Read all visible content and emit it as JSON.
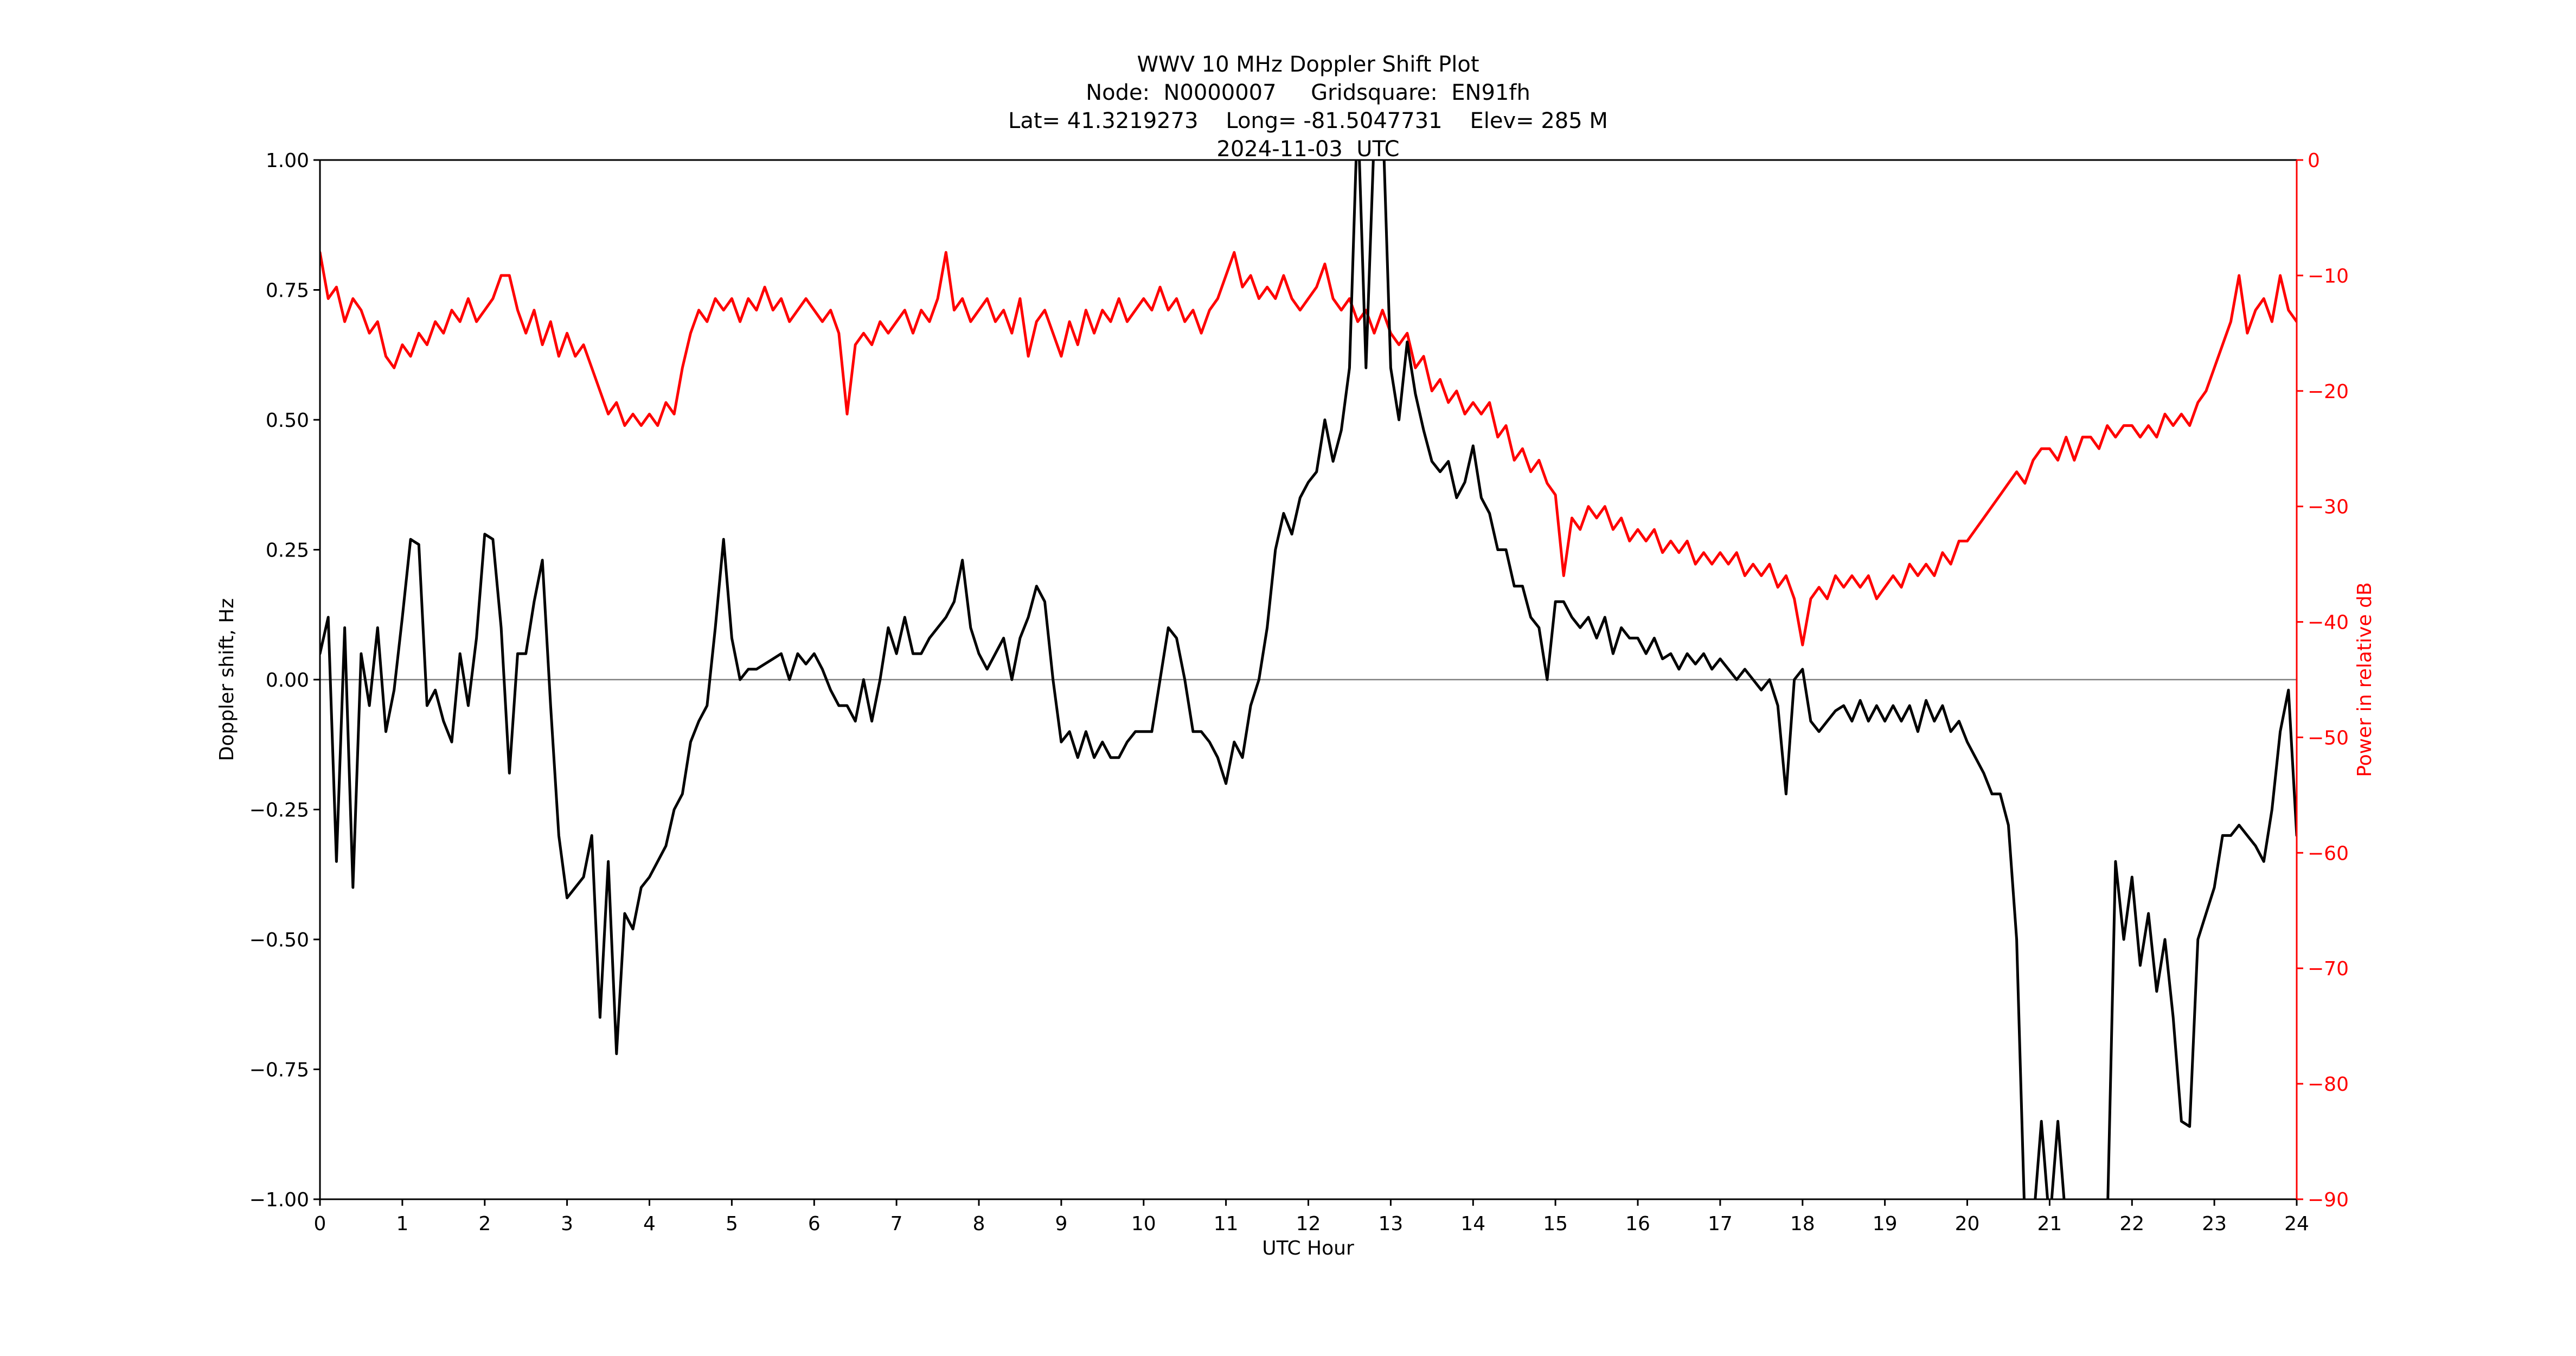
{
  "figure": {
    "title_line1": "WWV 10 MHz Doppler Shift Plot",
    "title_line2": "Node:  N0000007     Gridsquare:  EN91fh",
    "title_line3": "Lat= 41.3219273    Long= -81.5047731    Elev= 285 M",
    "title_line4": "2024-11-03  UTC",
    "background_color": "#ffffff"
  },
  "axes": {
    "x": {
      "label": "UTC Hour",
      "min": 0,
      "max": 24,
      "ticks": [
        0,
        1,
        2,
        3,
        4,
        5,
        6,
        7,
        8,
        9,
        10,
        11,
        12,
        13,
        14,
        15,
        16,
        17,
        18,
        19,
        20,
        21,
        22,
        23,
        24
      ],
      "tick_labels": [
        "0",
        "1",
        "2",
        "3",
        "4",
        "5",
        "6",
        "7",
        "8",
        "9",
        "10",
        "11",
        "12",
        "13",
        "14",
        "15",
        "16",
        "17",
        "18",
        "19",
        "20",
        "21",
        "22",
        "23",
        "24"
      ],
      "color": "#000000"
    },
    "y_left": {
      "label": "Doppler shift, Hz",
      "min": -1.0,
      "max": 1.0,
      "ticks": [
        1.0,
        0.75,
        0.5,
        0.25,
        0.0,
        -0.25,
        -0.5,
        -0.75,
        -1.0
      ],
      "tick_labels": [
        "1.00",
        "0.75",
        "0.50",
        "0.25",
        "0.00",
        "−0.25",
        "−0.50",
        "−0.75",
        "−1.00"
      ],
      "color": "#000000"
    },
    "y_right": {
      "label": "Power in relative dB",
      "min": -90,
      "max": 0,
      "ticks": [
        0,
        -10,
        -20,
        -30,
        -40,
        -50,
        -60,
        -70,
        -80,
        -90
      ],
      "tick_labels": [
        "0",
        "−10",
        "−20",
        "−30",
        "−40",
        "−50",
        "−60",
        "−70",
        "−80",
        "−90"
      ],
      "color": "#ff0000"
    },
    "zero_line": {
      "value": 0.0,
      "color": "#808080"
    }
  },
  "chart_data": {
    "type": "line",
    "title": "WWV 10 MHz Doppler Shift Plot",
    "subtitle": "Node:  N0000007     Gridsquare:  EN91fh  |  Lat= 41.3219273  Long= -81.5047731  Elev= 285 M  |  2024-11-03 UTC",
    "xlabel": "UTC Hour",
    "ylabel_left": "Doppler shift, Hz",
    "ylabel_right": "Power in relative dB",
    "xlim": [
      0,
      24
    ],
    "ylim_left": [
      -1.0,
      1.0
    ],
    "ylim_right": [
      -90,
      0
    ],
    "grid": false,
    "legend": "none",
    "x_start": 0,
    "x_step": 0.1,
    "series": [
      {
        "name": "Doppler shift, Hz",
        "axis": "left",
        "color": "#000000",
        "values": [
          0.05,
          0.12,
          -0.35,
          0.1,
          -0.4,
          0.05,
          -0.05,
          0.1,
          -0.1,
          -0.02,
          0.12,
          0.27,
          0.26,
          -0.05,
          -0.02,
          -0.08,
          -0.12,
          0.05,
          -0.05,
          0.08,
          0.28,
          0.27,
          0.1,
          -0.18,
          0.05,
          0.05,
          0.15,
          0.23,
          -0.05,
          -0.3,
          -0.42,
          -0.4,
          -0.38,
          -0.3,
          -0.65,
          -0.35,
          -0.72,
          -0.45,
          -0.48,
          -0.4,
          -0.38,
          -0.35,
          -0.32,
          -0.25,
          -0.22,
          -0.12,
          -0.08,
          -0.05,
          0.1,
          0.27,
          0.08,
          0.0,
          0.02,
          0.02,
          0.03,
          0.04,
          0.05,
          0.0,
          0.05,
          0.03,
          0.05,
          0.02,
          -0.02,
          -0.05,
          -0.05,
          -0.08,
          0.0,
          -0.08,
          0.0,
          0.1,
          0.05,
          0.12,
          0.05,
          0.05,
          0.08,
          0.1,
          0.12,
          0.15,
          0.23,
          0.1,
          0.05,
          0.02,
          0.05,
          0.08,
          0.0,
          0.08,
          0.12,
          0.18,
          0.15,
          0.0,
          -0.12,
          -0.1,
          -0.15,
          -0.1,
          -0.15,
          -0.12,
          -0.15,
          -0.15,
          -0.12,
          -0.1,
          -0.1,
          -0.1,
          0.0,
          0.1,
          0.08,
          0.0,
          -0.1,
          -0.1,
          -0.12,
          -0.15,
          -0.2,
          -0.12,
          -0.15,
          -0.05,
          0.0,
          0.1,
          0.25,
          0.32,
          0.28,
          0.35,
          0.38,
          0.4,
          0.5,
          0.42,
          0.48,
          0.6,
          1.1,
          0.6,
          1.05,
          1.1,
          0.6,
          0.5,
          0.65,
          0.55,
          0.48,
          0.42,
          0.4,
          0.42,
          0.35,
          0.38,
          0.45,
          0.35,
          0.32,
          0.25,
          0.25,
          0.18,
          0.18,
          0.12,
          0.1,
          0.0,
          0.15,
          0.15,
          0.12,
          0.1,
          0.12,
          0.08,
          0.12,
          0.05,
          0.1,
          0.08,
          0.08,
          0.05,
          0.08,
          0.04,
          0.05,
          0.02,
          0.05,
          0.03,
          0.05,
          0.02,
          0.04,
          0.02,
          0.0,
          0.02,
          0.0,
          -0.02,
          0.0,
          -0.05,
          -0.22,
          0.0,
          0.02,
          -0.08,
          -0.1,
          -0.08,
          -0.06,
          -0.05,
          -0.08,
          -0.04,
          -0.08,
          -0.05,
          -0.08,
          -0.05,
          -0.08,
          -0.05,
          -0.1,
          -0.04,
          -0.08,
          -0.05,
          -0.1,
          -0.08,
          -0.12,
          -0.15,
          -0.18,
          -0.22,
          -0.22,
          -0.28,
          -0.5,
          -1.05,
          -1.05,
          -0.85,
          -1.05,
          -0.85,
          -1.05,
          -1.05,
          -1.05,
          -1.05,
          -1.05,
          -1.05,
          -0.35,
          -0.5,
          -0.38,
          -0.55,
          -0.45,
          -0.6,
          -0.5,
          -0.65,
          -0.85,
          -0.86,
          -0.5,
          -0.45,
          -0.4,
          -0.3,
          -0.3,
          -0.28,
          -0.3,
          -0.32,
          -0.35,
          -0.25,
          -0.1,
          -0.02,
          -0.3
        ]
      },
      {
        "name": "Power in relative dB",
        "axis": "right",
        "color": "#ff0000",
        "values": [
          -8,
          -12,
          -11,
          -14,
          -12,
          -13,
          -15,
          -14,
          -17,
          -18,
          -16,
          -17,
          -15,
          -16,
          -14,
          -15,
          -13,
          -14,
          -12,
          -14,
          -13,
          -12,
          -10,
          -10,
          -13,
          -15,
          -13,
          -16,
          -14,
          -17,
          -15,
          -17,
          -16,
          -18,
          -20,
          -22,
          -21,
          -23,
          -22,
          -23,
          -22,
          -23,
          -21,
          -22,
          -18,
          -15,
          -13,
          -14,
          -12,
          -13,
          -12,
          -14,
          -12,
          -13,
          -11,
          -13,
          -12,
          -14,
          -13,
          -12,
          -13,
          -14,
          -13,
          -15,
          -22,
          -16,
          -15,
          -16,
          -14,
          -15,
          -14,
          -13,
          -15,
          -13,
          -14,
          -12,
          -8,
          -13,
          -12,
          -14,
          -13,
          -12,
          -14,
          -13,
          -15,
          -12,
          -17,
          -14,
          -13,
          -15,
          -17,
          -14,
          -16,
          -13,
          -15,
          -13,
          -14,
          -12,
          -14,
          -13,
          -12,
          -13,
          -11,
          -13,
          -12,
          -14,
          -13,
          -15,
          -13,
          -12,
          -10,
          -8,
          -11,
          -10,
          -12,
          -11,
          -12,
          -10,
          -12,
          -13,
          -12,
          -11,
          -9,
          -12,
          -13,
          -12,
          -14,
          -13,
          -15,
          -13,
          -15,
          -16,
          -15,
          -18,
          -17,
          -20,
          -19,
          -21,
          -20,
          -22,
          -21,
          -22,
          -21,
          -24,
          -23,
          -26,
          -25,
          -27,
          -26,
          -28,
          -29,
          -36,
          -31,
          -32,
          -30,
          -31,
          -30,
          -32,
          -31,
          -33,
          -32,
          -33,
          -32,
          -34,
          -33,
          -34,
          -33,
          -35,
          -34,
          -35,
          -34,
          -35,
          -34,
          -36,
          -35,
          -36,
          -35,
          -37,
          -36,
          -38,
          -42,
          -38,
          -37,
          -38,
          -36,
          -37,
          -36,
          -37,
          -36,
          -38,
          -37,
          -36,
          -37,
          -35,
          -36,
          -35,
          -36,
          -34,
          -35,
          -33,
          -33,
          -32,
          -31,
          -30,
          -29,
          -28,
          -27,
          -28,
          -26,
          -25,
          -25,
          -26,
          -24,
          -26,
          -24,
          -24,
          -25,
          -23,
          -24,
          -23,
          -23,
          -24,
          -23,
          -24,
          -22,
          -23,
          -22,
          -23,
          -21,
          -20,
          -18,
          -16,
          -14,
          -10,
          -15,
          -13,
          -12,
          -14,
          -10,
          -13,
          -14
        ]
      }
    ]
  }
}
